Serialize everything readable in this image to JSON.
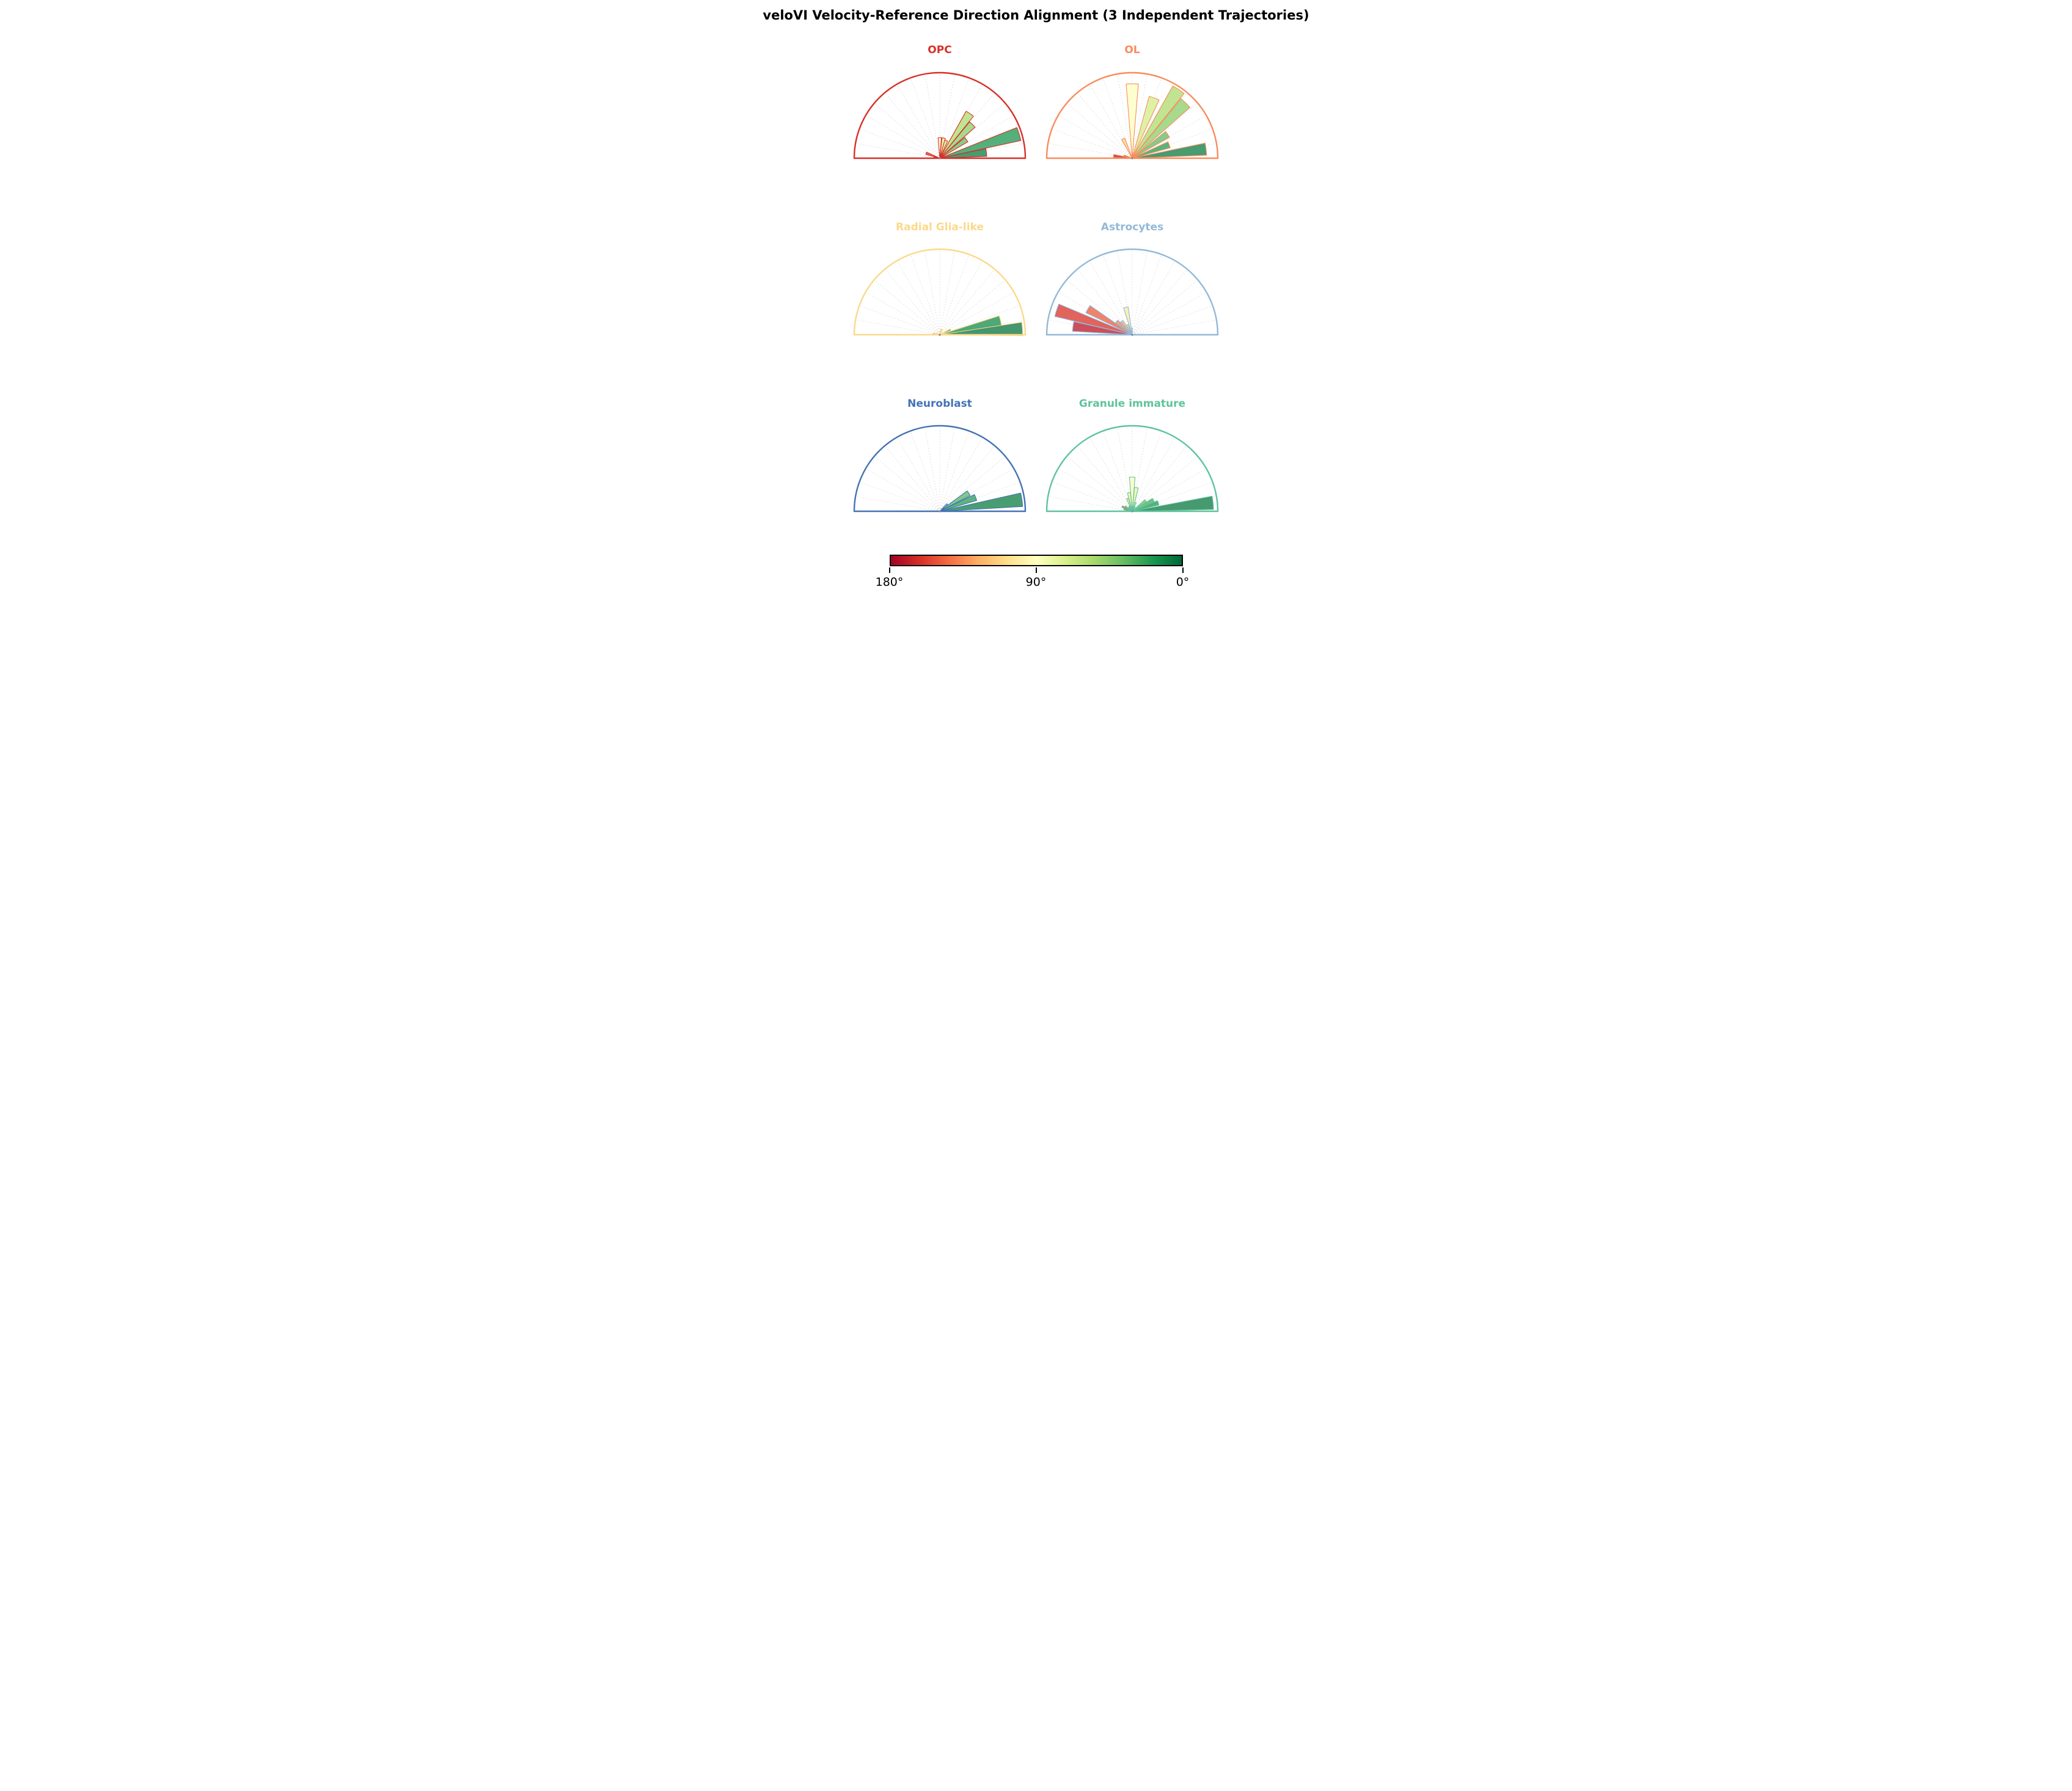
{
  "title": "veloVI Velocity-Reference Direction Alignment (3 Independent Trajectories)",
  "chart_data": {
    "type": "polar-histogram-grid",
    "layout": {
      "rows": 3,
      "cols": 2
    },
    "angular_range_deg": [
      0,
      180
    ],
    "bin_width_deg": 10,
    "grid_step_deg": 10,
    "grid_color": "#c9c9c9",
    "bar_fill_opacity": 0.75,
    "length_unit": "fraction of outer radius (relative frequency)",
    "angle_color_rule": "bar fill = RdYlGn colormap sampled at (180 - angle)/180, so 0° = green, 90° = yellow, 180° = red",
    "colormap_stops": [
      "#a50026",
      "#d73027",
      "#f46d43",
      "#fdae61",
      "#fee08b",
      "#ffffbf",
      "#d9ef8b",
      "#a6d96a",
      "#66bd63",
      "#1a9850",
      "#006837"
    ],
    "center_dot_color": "#8a8a8a",
    "subplots": [
      {
        "label": "OPC",
        "color": "#d73027",
        "bars": [
          {
            "angle_deg": 171,
            "length": 0.07
          },
          {
            "angle_deg": 160,
            "length": 0.17
          },
          {
            "angle_deg": 90,
            "length": 0.24
          },
          {
            "angle_deg": 79,
            "length": 0.24
          },
          {
            "angle_deg": 70,
            "length": 0.22
          },
          {
            "angle_deg": 56,
            "length": 0.63
          },
          {
            "angle_deg": 46,
            "length": 0.55
          },
          {
            "angle_deg": 35,
            "length": 0.38
          },
          {
            "angle_deg": 17,
            "length": 0.97
          },
          {
            "angle_deg": 7,
            "length": 0.55
          }
        ]
      },
      {
        "label": "OL",
        "color": "#f98c5b",
        "bars": [
          {
            "angle_deg": 173,
            "length": 0.22
          },
          {
            "angle_deg": 163,
            "length": 0.1
          },
          {
            "angle_deg": 115,
            "length": 0.25
          },
          {
            "angle_deg": 90,
            "length": 0.87
          },
          {
            "angle_deg": 70,
            "length": 0.75
          },
          {
            "angle_deg": 56,
            "length": 0.97
          },
          {
            "angle_deg": 46,
            "length": 0.9
          },
          {
            "angle_deg": 34,
            "length": 0.5
          },
          {
            "angle_deg": 20,
            "length": 0.46
          },
          {
            "angle_deg": 7,
            "length": 0.87
          }
        ]
      },
      {
        "label": "Radial Glia-like",
        "color": "#fbd98b",
        "bars": [
          {
            "angle_deg": 170,
            "length": 0.08
          },
          {
            "angle_deg": 160,
            "length": 0.05
          },
          {
            "angle_deg": 78,
            "length": 0.06
          },
          {
            "angle_deg": 66,
            "length": 0.07
          },
          {
            "angle_deg": 25,
            "length": 0.14
          },
          {
            "angle_deg": 13,
            "length": 0.73
          },
          {
            "angle_deg": 4,
            "length": 0.97
          }
        ]
      },
      {
        "label": "Astrocytes",
        "color": "#92b9d8",
        "bars": [
          {
            "angle_deg": 172,
            "length": 0.7
          },
          {
            "angle_deg": 162,
            "length": 0.93
          },
          {
            "angle_deg": 150,
            "length": 0.6
          },
          {
            "angle_deg": 139,
            "length": 0.24
          },
          {
            "angle_deg": 128,
            "length": 0.2
          },
          {
            "angle_deg": 117,
            "length": 0.13
          },
          {
            "angle_deg": 103,
            "length": 0.33
          },
          {
            "angle_deg": 94,
            "length": 0.08
          }
        ]
      },
      {
        "label": "Neuroblast",
        "color": "#4472b4",
        "bars": [
          {
            "angle_deg": 43,
            "length": 0.12
          },
          {
            "angle_deg": 32,
            "length": 0.4
          },
          {
            "angle_deg": 21,
            "length": 0.45
          },
          {
            "angle_deg": 8,
            "length": 0.97
          }
        ]
      },
      {
        "label": "Granule immature",
        "color": "#5fc39c",
        "bars": [
          {
            "angle_deg": 175,
            "length": 0.05
          },
          {
            "angle_deg": 165,
            "length": 0.1
          },
          {
            "angle_deg": 155,
            "length": 0.13
          },
          {
            "angle_deg": 145,
            "length": 0.1
          },
          {
            "angle_deg": 135,
            "length": 0.06
          },
          {
            "angle_deg": 120,
            "length": 0.07
          },
          {
            "angle_deg": 110,
            "length": 0.16
          },
          {
            "angle_deg": 100,
            "length": 0.22
          },
          {
            "angle_deg": 90,
            "length": 0.4
          },
          {
            "angle_deg": 80,
            "length": 0.28
          },
          {
            "angle_deg": 70,
            "length": 0.11
          },
          {
            "angle_deg": 60,
            "length": 0.06
          },
          {
            "angle_deg": 38,
            "length": 0.2
          },
          {
            "angle_deg": 28,
            "length": 0.28
          },
          {
            "angle_deg": 18,
            "length": 0.32
          },
          {
            "angle_deg": 6,
            "length": 0.95
          }
        ]
      }
    ],
    "colorbar": {
      "tick_labels": [
        "180°",
        "90°",
        "0°"
      ],
      "border_color": "#000000"
    }
  }
}
